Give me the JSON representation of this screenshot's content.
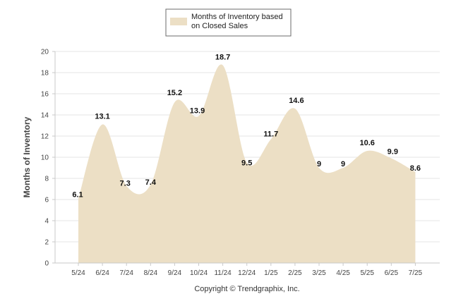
{
  "legend": {
    "line1": "Months of Inventory based",
    "line2": "on Closed Sales"
  },
  "copyright": "Copyright © Trendgraphix, Inc.",
  "colors": {
    "area_fill": "#ecdfc5",
    "legend_swatch": "#ecdfc5"
  },
  "chart_data": {
    "type": "area",
    "title": "",
    "xlabel": "",
    "ylabel": "Months of Inventory",
    "ylim": [
      0,
      20
    ],
    "yticks": [
      0,
      2,
      4,
      6,
      8,
      10,
      12,
      14,
      16,
      18,
      20
    ],
    "grid": true,
    "legend_position": "top-center",
    "categories": [
      "5/24",
      "6/24",
      "7/24",
      "8/24",
      "9/24",
      "10/24",
      "11/24",
      "12/24",
      "1/25",
      "2/25",
      "3/25",
      "4/25",
      "5/25",
      "6/25",
      "7/25"
    ],
    "series": [
      {
        "name": "Months of Inventory based on Closed Sales",
        "values": [
          6.1,
          13.1,
          7.3,
          7.4,
          15.2,
          13.9,
          18.7,
          9.5,
          11.7,
          14.6,
          9,
          9,
          10.6,
          9.9,
          8.6
        ],
        "labels": [
          "6.1",
          "13.1",
          "7.3",
          "7.4",
          "15.2",
          "13.9",
          "18.7",
          "9.5",
          "11.7",
          "14.6",
          "9",
          "9",
          "10.6",
          "9.9",
          "8.6"
        ]
      }
    ]
  }
}
